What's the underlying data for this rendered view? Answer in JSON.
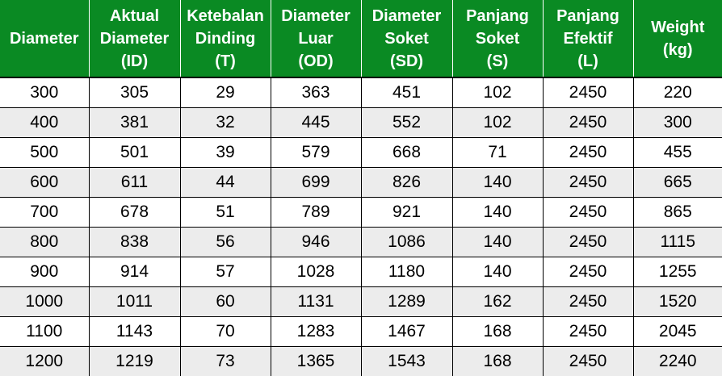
{
  "table": {
    "headers": [
      [
        "Diameter"
      ],
      [
        "Aktual",
        "Diameter",
        "(ID)"
      ],
      [
        "Ketebalan",
        "Dinding",
        "(T)"
      ],
      [
        "Diameter",
        "Luar",
        "(OD)"
      ],
      [
        "Diameter",
        "Soket",
        "(SD)"
      ],
      [
        "Panjang",
        "Soket",
        "(S)"
      ],
      [
        "Panjang",
        "Efektif",
        "(L)"
      ],
      [
        "Weight",
        "(kg)"
      ]
    ],
    "rows": [
      [
        "300",
        "305",
        "29",
        "363",
        "451",
        "102",
        "2450",
        "220"
      ],
      [
        "400",
        "381",
        "32",
        "445",
        "552",
        "102",
        "2450",
        "300"
      ],
      [
        "500",
        "501",
        "39",
        "579",
        "668",
        "71",
        "2450",
        "455"
      ],
      [
        "600",
        "611",
        "44",
        "699",
        "826",
        "140",
        "2450",
        "665"
      ],
      [
        "700",
        "678",
        "51",
        "789",
        "921",
        "140",
        "2450",
        "865"
      ],
      [
        "800",
        "838",
        "56",
        "946",
        "1086",
        "140",
        "2450",
        "1115"
      ],
      [
        "900",
        "914",
        "57",
        "1028",
        "1180",
        "140",
        "2450",
        "1255"
      ],
      [
        "1000",
        "1011",
        "60",
        "1131",
        "1289",
        "162",
        "2450",
        "1520"
      ],
      [
        "1100",
        "1143",
        "70",
        "1283",
        "1467",
        "168",
        "2450",
        "2045"
      ],
      [
        "1200",
        "1219",
        "73",
        "1365",
        "1543",
        "168",
        "2450",
        "2240"
      ]
    ]
  },
  "colors": {
    "header_background": "#0a8a23",
    "header_text": "#ffffff",
    "row_stripe": "#ececec",
    "grid_line": "#000000"
  }
}
